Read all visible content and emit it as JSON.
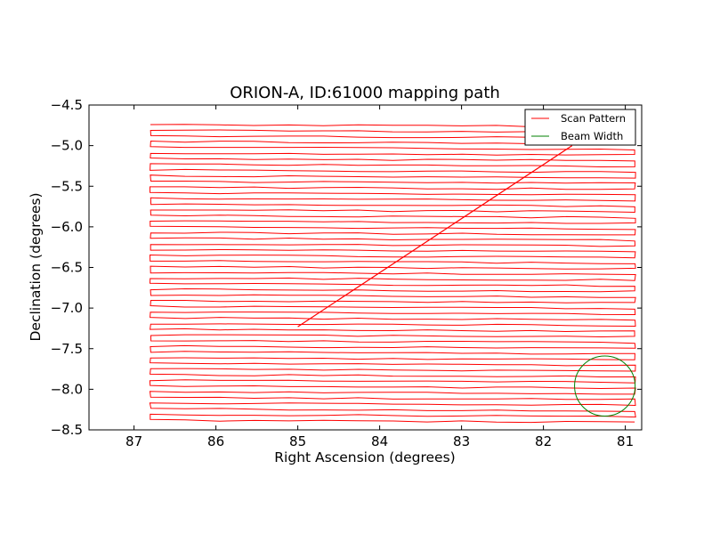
{
  "chart_data": {
    "type": "line",
    "title": "ORION-A, ID:61000 mapping path",
    "xlabel": "Right Ascension (degrees)",
    "ylabel": "Declination (degrees)",
    "xlim": [
      87.55,
      80.8
    ],
    "ylim": [
      -8.5,
      -4.5
    ],
    "x_ticks": [
      87,
      86,
      85,
      84,
      83,
      82,
      81
    ],
    "x_tick_labels": [
      "87",
      "86",
      "85",
      "84",
      "83",
      "82",
      "81"
    ],
    "y_ticks": [
      -4.5,
      -5.0,
      -5.5,
      -6.0,
      -6.5,
      -7.0,
      -7.5,
      -8.0,
      -8.5
    ],
    "y_tick_labels": [
      "−4.5",
      "−5.0",
      "−5.5",
      "−6.0",
      "−6.5",
      "−7.0",
      "−7.5",
      "−8.0",
      "−8.5"
    ],
    "grid": false,
    "legend_position": "top-right",
    "series": [
      {
        "name": "Scan Pattern",
        "color": "#ff0000",
        "scan": {
          "ra_east": 86.8,
          "ra_west": 80.88,
          "dec_start": -4.74,
          "dec_end": -8.38,
          "n_rows": 53
        },
        "slew_segment": {
          "x": [
            85.0,
            81.65
          ],
          "y": [
            -7.23,
            -5.0
          ]
        }
      },
      {
        "name": "Beam Width",
        "color": "#008000",
        "circle": {
          "center_ra": 81.25,
          "center_dec": -7.96,
          "radius_deg": 0.37
        }
      }
    ]
  }
}
